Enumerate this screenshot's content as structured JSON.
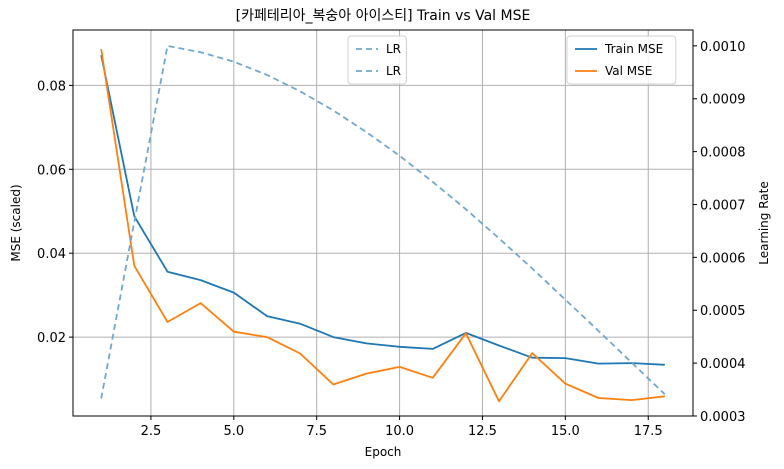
{
  "chart_data": {
    "type": "line",
    "title": "[카페테리아_복숭아 아이스티] Train vs Val MSE",
    "xlabel": "Epoch",
    "ylabel": "MSE (scaled)",
    "y2label": "Learning Rate",
    "x": [
      1,
      2,
      3,
      4,
      5,
      6,
      7,
      8,
      9,
      10,
      11,
      12,
      13,
      14,
      15,
      16,
      17,
      18
    ],
    "xlim": [
      0.15,
      18.85
    ],
    "ylim": [
      0.0012,
      0.0932
    ],
    "y2lim": [
      0.0003,
      0.00103
    ],
    "xticks": [
      "2.5",
      "5.0",
      "7.5",
      "10.0",
      "12.5",
      "15.0",
      "17.5"
    ],
    "xtick_values": [
      2.5,
      5.0,
      7.5,
      10.0,
      12.5,
      15.0,
      17.5
    ],
    "yticks": [
      "0.02",
      "0.04",
      "0.06",
      "0.08"
    ],
    "ytick_values": [
      0.02,
      0.04,
      0.06,
      0.08
    ],
    "y2ticks": [
      "0.0003",
      "0.0004",
      "0.0005",
      "0.0006",
      "0.0007",
      "0.0008",
      "0.0009",
      "0.0010"
    ],
    "y2tick_values": [
      0.0003,
      0.0004,
      0.0005,
      0.0006,
      0.0007,
      0.0008,
      0.0009,
      0.001
    ],
    "grid": true,
    "series": [
      {
        "name": "Train MSE",
        "axis": "left",
        "color": "#1f77b4",
        "style": "solid",
        "values": [
          0.0872,
          0.0488,
          0.0356,
          0.0336,
          0.0306,
          0.025,
          0.0232,
          0.02,
          0.0185,
          0.0177,
          0.0172,
          0.021,
          0.018,
          0.0151,
          0.015,
          0.0137,
          0.0138,
          0.0134
        ]
      },
      {
        "name": "Val MSE",
        "axis": "left",
        "color": "#ff7f0e",
        "style": "solid",
        "values": [
          0.0886,
          0.037,
          0.0236,
          0.0281,
          0.0213,
          0.02,
          0.0161,
          0.0087,
          0.0113,
          0.0129,
          0.0103,
          0.0209,
          0.0047,
          0.0162,
          0.0089,
          0.0055,
          0.005,
          0.0059
        ]
      },
      {
        "name": "LR",
        "axis": "right",
        "color": "#6fa8d0",
        "style": "dashed",
        "values": [
          0.000333,
          0.000667,
          0.001,
          0.000988,
          0.00097,
          0.000945,
          0.000914,
          0.000878,
          0.000837,
          0.000792,
          0.000743,
          0.000691,
          0.000636,
          0.000579,
          0.00052,
          0.000461,
          0.000401,
          0.000341
        ]
      }
    ],
    "legends": [
      {
        "placement": "top-center",
        "entries": [
          "LR",
          "LR"
        ]
      },
      {
        "placement": "top-right",
        "entries": [
          "Train MSE",
          "Val MSE"
        ]
      }
    ]
  }
}
